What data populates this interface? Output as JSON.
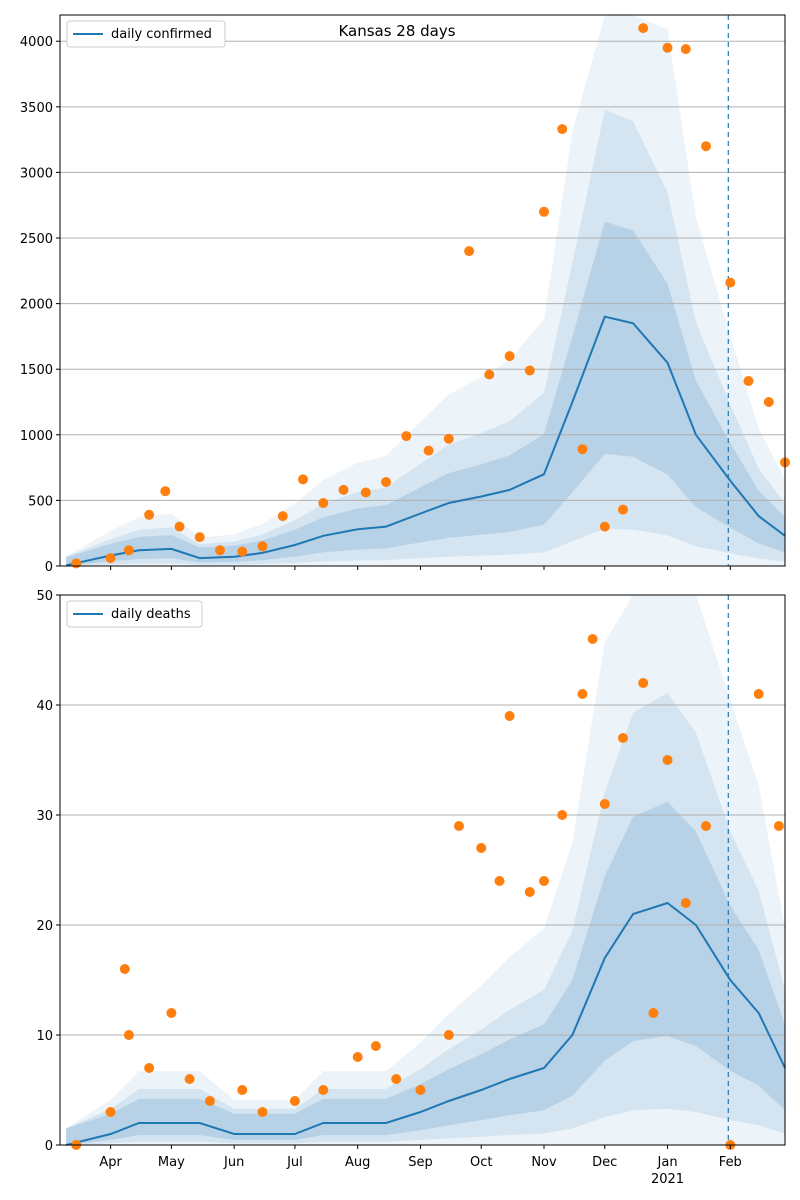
{
  "chart_data": [
    {
      "type": "line",
      "title": "Kansas 28 days",
      "xlabel": "",
      "ylabel": "",
      "x_range": [
        "2020-03-07",
        "2021-02-28"
      ],
      "ylim": [
        0,
        4200
      ],
      "yticks": [
        0,
        500,
        1000,
        1500,
        2000,
        2500,
        3000,
        3500,
        4000
      ],
      "grid": "horizontal",
      "legend": "top-left",
      "cutoff_date": "2021-01-31",
      "series": [
        {
          "name": "daily confirmed",
          "kind": "line",
          "color": "#1f77b4",
          "x": [
            "2020-03-10",
            "2020-04-01",
            "2020-04-15",
            "2020-05-01",
            "2020-05-15",
            "2020-06-01",
            "2020-06-15",
            "2020-07-01",
            "2020-07-15",
            "2020-08-01",
            "2020-08-15",
            "2020-09-01",
            "2020-09-15",
            "2020-10-01",
            "2020-10-15",
            "2020-11-01",
            "2020-11-15",
            "2020-12-01",
            "2020-12-15",
            "2021-01-01",
            "2021-01-15",
            "2021-02-01",
            "2021-02-15",
            "2021-02-28"
          ],
          "values": [
            5,
            80,
            120,
            130,
            60,
            70,
            100,
            160,
            230,
            280,
            300,
            400,
            480,
            530,
            580,
            700,
            1250,
            1900,
            1850,
            1550,
            1000,
            650,
            380,
            230
          ]
        },
        {
          "name": "",
          "kind": "scatter",
          "color": "#ff7f0e",
          "x": [
            "2020-03-15",
            "2020-04-01",
            "2020-04-10",
            "2020-04-20",
            "2020-04-28",
            "2020-05-05",
            "2020-05-15",
            "2020-05-25",
            "2020-06-05",
            "2020-06-15",
            "2020-06-25",
            "2020-07-05",
            "2020-07-15",
            "2020-07-25",
            "2020-08-05",
            "2020-08-15",
            "2020-08-25",
            "2020-09-05",
            "2020-09-15",
            "2020-09-25",
            "2020-10-05",
            "2020-10-15",
            "2020-10-25",
            "2020-11-01",
            "2020-11-10",
            "2020-11-20",
            "2020-12-01",
            "2020-12-10",
            "2020-12-20",
            "2021-01-01",
            "2021-01-10",
            "2021-01-20",
            "2021-02-01",
            "2021-02-10",
            "2021-02-20",
            "2021-02-28"
          ],
          "values": [
            20,
            60,
            120,
            390,
            570,
            300,
            220,
            120,
            110,
            150,
            380,
            660,
            480,
            580,
            560,
            640,
            990,
            880,
            970,
            2400,
            1460,
            1600,
            1490,
            2700,
            3330,
            890,
            300,
            430,
            4100,
            3950,
            3940,
            3200,
            2160,
            1410,
            1250,
            790
          ]
        }
      ],
      "bands": [
        "outer",
        "middle",
        "inner"
      ]
    },
    {
      "type": "line",
      "title": "",
      "xlabel": "",
      "ylabel": "",
      "x_range": [
        "2020-03-07",
        "2021-02-28"
      ],
      "ylim": [
        0,
        50
      ],
      "yticks": [
        0,
        10,
        20,
        30,
        40,
        50
      ],
      "xticks": [
        {
          "date": "2020-04-01",
          "label": "Apr"
        },
        {
          "date": "2020-05-01",
          "label": "May"
        },
        {
          "date": "2020-06-01",
          "label": "Jun"
        },
        {
          "date": "2020-07-01",
          "label": "Jul"
        },
        {
          "date": "2020-08-01",
          "label": "Aug"
        },
        {
          "date": "2020-09-01",
          "label": "Sep"
        },
        {
          "date": "2020-10-01",
          "label": "Oct"
        },
        {
          "date": "2020-11-01",
          "label": "Nov"
        },
        {
          "date": "2020-12-01",
          "label": "Dec"
        },
        {
          "date": "2021-01-01",
          "label": "Jan",
          "sublabel": "2021"
        },
        {
          "date": "2021-02-01",
          "label": "Feb"
        }
      ],
      "grid": "horizontal",
      "legend": "top-left",
      "cutoff_date": "2021-01-31",
      "series": [
        {
          "name": "daily deaths",
          "kind": "line",
          "color": "#1f77b4",
          "x": [
            "2020-03-10",
            "2020-04-01",
            "2020-04-15",
            "2020-05-01",
            "2020-05-15",
            "2020-06-01",
            "2020-06-15",
            "2020-07-01",
            "2020-07-15",
            "2020-08-01",
            "2020-08-15",
            "2020-09-01",
            "2020-09-15",
            "2020-10-01",
            "2020-10-15",
            "2020-11-01",
            "2020-11-15",
            "2020-12-01",
            "2020-12-15",
            "2021-01-01",
            "2021-01-15",
            "2021-02-01",
            "2021-02-15",
            "2021-02-28"
          ],
          "values": [
            0,
            1,
            2,
            2,
            2,
            1,
            1,
            1,
            2,
            2,
            2,
            3,
            4,
            5,
            6,
            7,
            10,
            17,
            21,
            22,
            20,
            15,
            12,
            7
          ]
        },
        {
          "name": "",
          "kind": "scatter",
          "color": "#ff7f0e",
          "x": [
            "2020-03-15",
            "2020-04-01",
            "2020-04-08",
            "2020-04-10",
            "2020-04-20",
            "2020-05-01",
            "2020-05-10",
            "2020-05-20",
            "2020-06-05",
            "2020-06-15",
            "2020-07-01",
            "2020-07-15",
            "2020-08-01",
            "2020-08-10",
            "2020-08-20",
            "2020-09-01",
            "2020-09-15",
            "2020-09-20",
            "2020-10-01",
            "2020-10-10",
            "2020-10-15",
            "2020-10-25",
            "2020-11-01",
            "2020-11-10",
            "2020-11-20",
            "2020-11-25",
            "2020-12-01",
            "2020-12-10",
            "2020-12-20",
            "2020-12-25",
            "2021-01-01",
            "2021-01-10",
            "2021-01-20",
            "2021-02-01",
            "2021-02-15",
            "2021-02-25"
          ],
          "values": [
            0,
            3,
            16,
            10,
            7,
            12,
            6,
            4,
            5,
            3,
            4,
            5,
            8,
            9,
            6,
            5,
            10,
            29,
            27,
            24,
            39,
            23,
            24,
            30,
            41,
            46,
            31,
            37,
            42,
            12,
            35,
            22,
            29,
            0,
            41,
            29
          ]
        }
      ],
      "bands": [
        "outer",
        "middle",
        "inner"
      ]
    }
  ]
}
